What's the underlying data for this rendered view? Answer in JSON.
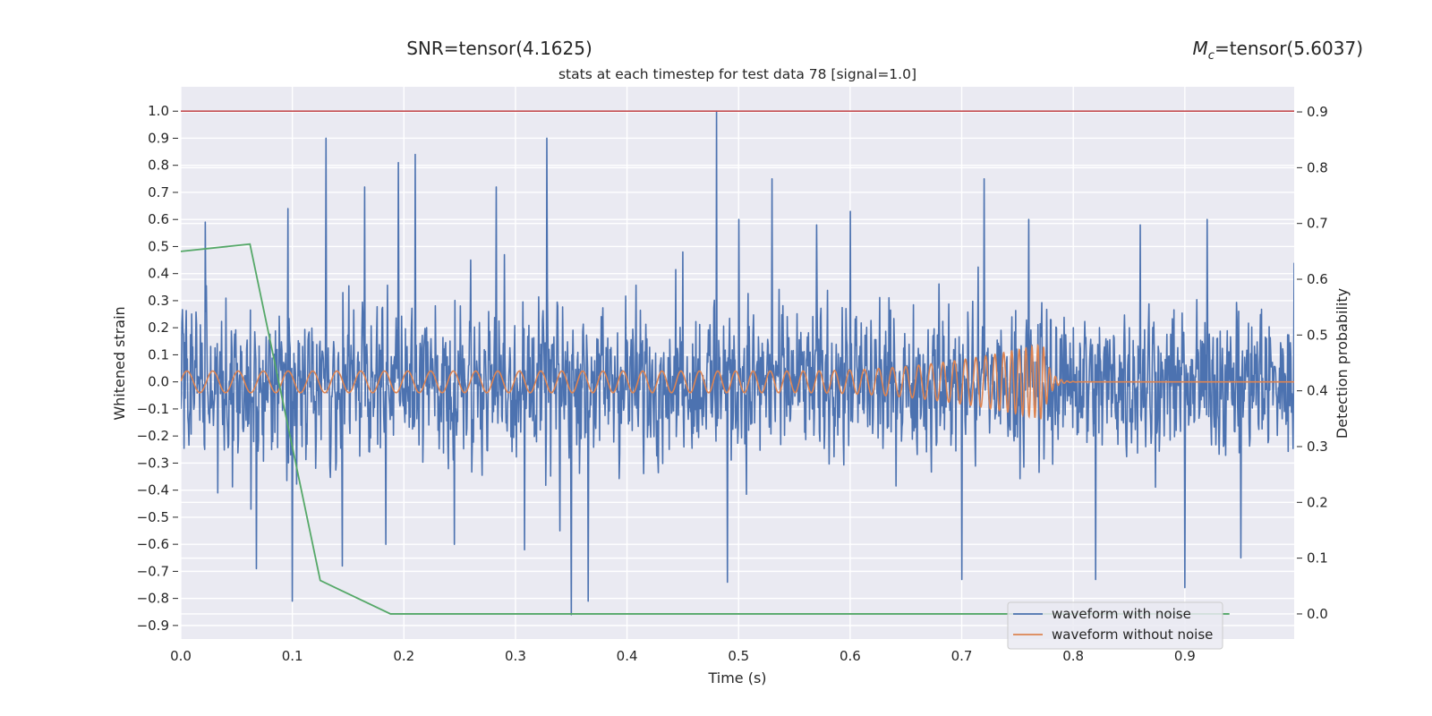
{
  "chart_data": {
    "type": "line",
    "title": "stats at each timestep for test data 78 [signal=1.0]",
    "snr_text": "SNR=tensor(4.1625)",
    "mc_symbol": "M",
    "mc_subscript": "c",
    "mc_value": "=tensor(5.6037)",
    "xlabel": "Time (s)",
    "ylabel_left": "Whitened strain",
    "ylabel_right": "Detection probability",
    "xlim": [
      0.0,
      0.998
    ],
    "ylim_left": [
      -0.95,
      1.09
    ],
    "ylim_right": [
      -0.045,
      0.945
    ],
    "xticks": [
      "0.0",
      "0.1",
      "0.2",
      "0.3",
      "0.4",
      "0.5",
      "0.6",
      "0.7",
      "0.8",
      "0.9"
    ],
    "yticks_left": [
      "1.0",
      "0.9",
      "0.8",
      "0.7",
      "0.6",
      "0.5",
      "0.4",
      "0.3",
      "0.2",
      "0.1",
      "0.0",
      "−0.1",
      "−0.2",
      "−0.3",
      "−0.4",
      "−0.5",
      "−0.6",
      "−0.7",
      "−0.8",
      "−0.9"
    ],
    "yticks_right": [
      "0.9",
      "0.8",
      "0.7",
      "0.6",
      "0.5",
      "0.4",
      "0.3",
      "0.2",
      "0.1",
      "0.0"
    ],
    "grid": true,
    "legend_position": "lower-right",
    "series": [
      {
        "name": "waveform with noise",
        "color": "#4c72b0",
        "axis": "left",
        "anchor_points": [
          [
            0.0,
            -0.1
          ],
          [
            0.022,
            0.59
          ],
          [
            0.033,
            -0.41
          ],
          [
            0.063,
            -0.47
          ],
          [
            0.068,
            -0.69
          ],
          [
            0.096,
            0.64
          ],
          [
            0.1,
            -0.81
          ],
          [
            0.13,
            0.9
          ],
          [
            0.145,
            -0.68
          ],
          [
            0.165,
            0.72
          ],
          [
            0.184,
            -0.6
          ],
          [
            0.195,
            0.81
          ],
          [
            0.21,
            0.84
          ],
          [
            0.245,
            -0.6
          ],
          [
            0.26,
            0.45
          ],
          [
            0.283,
            0.72
          ],
          [
            0.29,
            0.47
          ],
          [
            0.308,
            -0.62
          ],
          [
            0.328,
            0.9
          ],
          [
            0.34,
            -0.55
          ],
          [
            0.35,
            -0.86
          ],
          [
            0.365,
            -0.81
          ],
          [
            0.45,
            0.48
          ],
          [
            0.48,
            1.0
          ],
          [
            0.49,
            -0.74
          ],
          [
            0.5,
            0.6
          ],
          [
            0.53,
            0.75
          ],
          [
            0.57,
            0.58
          ],
          [
            0.6,
            0.63
          ],
          [
            0.7,
            -0.73
          ],
          [
            0.72,
            0.75
          ],
          [
            0.76,
            0.6
          ],
          [
            0.8,
            0.2
          ],
          [
            0.82,
            -0.73
          ],
          [
            0.86,
            0.58
          ],
          [
            0.9,
            -0.76
          ],
          [
            0.92,
            0.6
          ],
          [
            0.95,
            -0.65
          ],
          [
            0.998,
            0.44
          ]
        ]
      },
      {
        "name": "waveform without noise",
        "color": "#dd8452",
        "axis": "left",
        "chirp_start_amplitude": 0.04,
        "chirp_peak_amplitude": 0.14,
        "chirp_merger_time": 0.773,
        "chirp_start_frequency_hz": 43,
        "chirp_end_frequency_hz": 190,
        "ringdown_end_time": 0.79
      },
      {
        "color": "#55a868",
        "axis": "right",
        "points": [
          [
            0.0,
            0.65
          ],
          [
            0.062,
            0.663
          ],
          [
            0.125,
            0.06
          ],
          [
            0.188,
            0.0
          ],
          [
            0.94,
            0.0
          ]
        ]
      },
      {
        "color": "#c44e52",
        "axis": "left",
        "points": [
          [
            0.0,
            1.0
          ],
          [
            0.998,
            1.0
          ]
        ]
      }
    ]
  }
}
